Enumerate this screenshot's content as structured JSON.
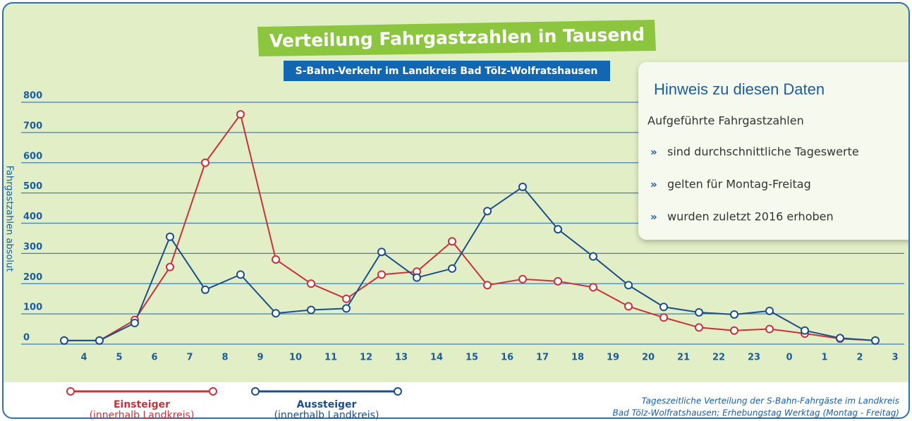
{
  "chart_data": {
    "type": "line",
    "title": "Verteilung Fahrgastzahlen in Tausend",
    "subtitle": "S-Bahn-Verkehr im Landkreis Bad Tölz-Wolfratshausen",
    "y_label": "Fahrgastzahlen absolut",
    "categories": [
      "4",
      "5",
      "6",
      "7",
      "8",
      "9",
      "10",
      "11",
      "12",
      "13",
      "14",
      "15",
      "16",
      "17",
      "18",
      "19",
      "20",
      "21",
      "22",
      "23",
      "0",
      "1",
      "2",
      "3"
    ],
    "series": [
      {
        "name": "Einsteiger",
        "note": "(innerhalb Landkreis)",
        "color": "#c8323a",
        "values": [
          12,
          12,
          80,
          255,
          600,
          760,
          280,
          200,
          150,
          230,
          240,
          340,
          195,
          215,
          208,
          188,
          125,
          88,
          55,
          45,
          50,
          35,
          18,
          12
        ]
      },
      {
        "name": "Aussteiger",
        "note": "(innerhalb Landkreis)",
        "color": "#1a4f8b",
        "values": [
          12,
          12,
          70,
          355,
          180,
          230,
          102,
          113,
          118,
          305,
          220,
          250,
          440,
          520,
          380,
          290,
          195,
          123,
          105,
          98,
          110,
          45,
          20,
          12
        ]
      }
    ],
    "ylim": [
      0,
      800
    ],
    "yticks": [
      0,
      100,
      200,
      300,
      400,
      500,
      600,
      700,
      800
    ],
    "grid": true,
    "note_box": {
      "title": "Hinweis zu diesen Daten",
      "intro": "Aufgeführte Fahrgastzahlen",
      "items": [
        "sind durchschnittliche Tageswerte",
        "gelten für Montag-Freitag",
        "wurden zuletzt 2016 erhoben"
      ]
    },
    "footnote": [
      "Tageszeitliche Verteilung der S-Bahn-Fahrgäste im Landkreis",
      "Bad Tölz-Wolfratshausen;  Erhebungstag Werktag (Montag - Freitag)"
    ]
  }
}
